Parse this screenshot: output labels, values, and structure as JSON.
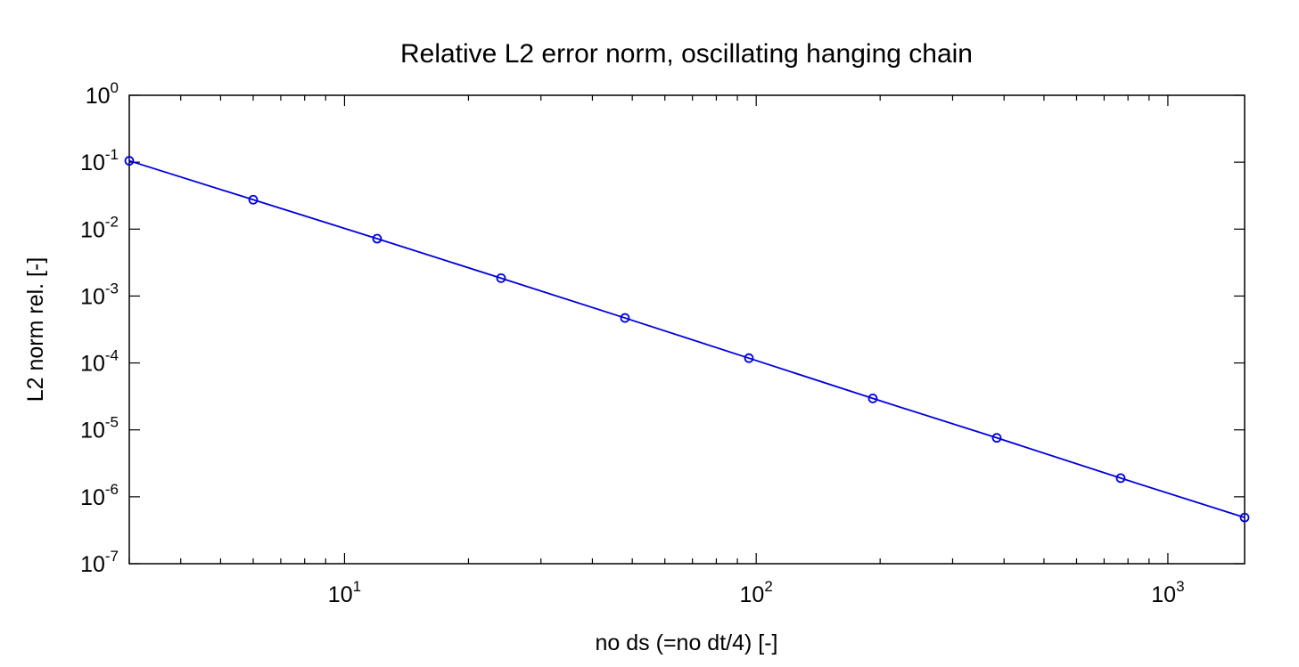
{
  "chart_data": {
    "type": "line",
    "title": "Relative L2 error norm, oscillating hanging chain",
    "xlabel": "no ds (=no dt/4) [-]",
    "ylabel": "L2 norm rel. [-]",
    "x_scale": "log",
    "y_scale": "log",
    "xlim": [
      3,
      1536
    ],
    "ylim": [
      1e-07,
      1
    ],
    "x_ticks": [
      {
        "value": 10,
        "base": "10",
        "exp": "1"
      },
      {
        "value": 100,
        "base": "10",
        "exp": "2"
      },
      {
        "value": 1000,
        "base": "10",
        "exp": "3"
      }
    ],
    "y_ticks": [
      {
        "value": 1,
        "base": "10",
        "exp": "0"
      },
      {
        "value": 0.1,
        "base": "10",
        "exp": "-1"
      },
      {
        "value": 0.01,
        "base": "10",
        "exp": "-2"
      },
      {
        "value": 0.001,
        "base": "10",
        "exp": "-3"
      },
      {
        "value": 0.0001,
        "base": "10",
        "exp": "-4"
      },
      {
        "value": 1e-05,
        "base": "10",
        "exp": "-5"
      },
      {
        "value": 1e-06,
        "base": "10",
        "exp": "-6"
      },
      {
        "value": 1e-07,
        "base": "10",
        "exp": "-7"
      }
    ],
    "grid": false,
    "series": [
      {
        "color": "#0000e0",
        "marker": "circle",
        "x": [
          3,
          6,
          12,
          24,
          48,
          96,
          192,
          384,
          768,
          1536
        ],
        "y": [
          0.105,
          0.0275,
          0.0072,
          0.00185,
          0.00047,
          0.000118,
          2.95e-05,
          7.6e-06,
          1.9e-06,
          4.9e-07
        ]
      }
    ]
  }
}
